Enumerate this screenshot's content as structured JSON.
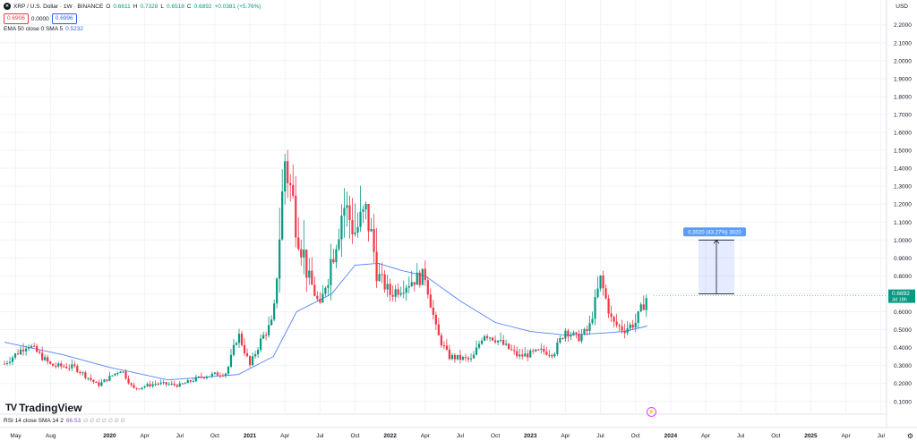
{
  "symbol": {
    "icon": "xrp-logo-icon",
    "title": "XRP / U.S. Dollar · 1W · BINANCE",
    "o_label": "O",
    "o_value": "0.6611",
    "h_label": "H",
    "h_value": "0.7328",
    "l_label": "L",
    "l_value": "0.6518",
    "c_label": "C",
    "c_value": "0.6892",
    "change": "+0.0381 (+5.76%)"
  },
  "trade": {
    "sell_price": "0.6906",
    "spread": "0.0000",
    "buy_price": "0.6996"
  },
  "ema": {
    "label": "EMA 50 close 0 SMA 5",
    "value": "0.5232"
  },
  "rsi": {
    "label": "RSI 14 close SMA 14 2",
    "value": "66.53",
    "placeholders": "∅ ∅ ∅ ∅ ∅ ∅ ∅"
  },
  "axis": {
    "currency": "USD"
  },
  "logo_text": "TradingView",
  "measure": {
    "label": "0.3020 (43.27%) 3020"
  },
  "last_price": {
    "value": "0.6892",
    "countdown": "3d 18h"
  },
  "icons": {
    "settings": "gear-icon",
    "lightning": "lightning-icon"
  },
  "colors": {
    "up": "#089981",
    "down": "#f23645",
    "ema": "#2962ff",
    "measure": "#5b9cf6"
  },
  "chart_data": {
    "type": "candlestick",
    "title": "XRP / U.S. Dollar · 1W · BINANCE",
    "ylim": [
      0.05,
      2.25
    ],
    "y_ticks": [
      "2.2000",
      "2.1000",
      "2.0000",
      "1.9000",
      "1.8000",
      "1.7000",
      "1.6000",
      "1.5000",
      "1.4000",
      "1.3000",
      "1.2000",
      "1.1000",
      "1.0000",
      "0.9000",
      "0.8000",
      "0.7000",
      "0.6000",
      "0.5000",
      "0.4000",
      "0.3000",
      "0.2000",
      "0.1000"
    ],
    "x_ticks": [
      "May",
      "Aug",
      "2020",
      "Apr",
      "Jul",
      "Oct",
      "2021",
      "Apr",
      "Jul",
      "Oct",
      "2022",
      "Apr",
      "Jul",
      "Oct",
      "2023",
      "Apr",
      "Jul",
      "Oct",
      "2024",
      "Apr",
      "Jul",
      "Oct",
      "2025",
      "Apr",
      "Jul"
    ],
    "grid": true,
    "series": [
      {
        "kind": "weekly-close-anchors",
        "x": [
          "2019-04",
          "2019-06",
          "2019-08",
          "2019-10",
          "2019-12",
          "2020-02",
          "2020-03",
          "2020-05",
          "2020-07",
          "2020-09",
          "2020-11",
          "2020-12",
          "2021-01",
          "2021-02",
          "2021-03",
          "2021-04",
          "2021-05",
          "2021-06",
          "2021-07",
          "2021-09",
          "2021-10",
          "2021-11",
          "2021-12",
          "2022-01",
          "2022-03",
          "2022-04",
          "2022-05",
          "2022-06",
          "2022-08",
          "2022-09",
          "2022-10",
          "2022-11",
          "2022-12",
          "2023-02",
          "2023-03",
          "2023-04",
          "2023-05",
          "2023-06",
          "2023-07",
          "2023-08",
          "2023-09",
          "2023-10",
          "2023-11"
        ],
        "close": [
          0.31,
          0.42,
          0.3,
          0.29,
          0.19,
          0.28,
          0.17,
          0.2,
          0.19,
          0.24,
          0.26,
          0.48,
          0.3,
          0.45,
          0.55,
          1.45,
          1.1,
          0.8,
          0.62,
          1.2,
          1.05,
          1.15,
          0.8,
          0.7,
          0.78,
          0.8,
          0.48,
          0.35,
          0.33,
          0.48,
          0.45,
          0.4,
          0.35,
          0.38,
          0.37,
          0.5,
          0.45,
          0.5,
          0.78,
          0.54,
          0.5,
          0.54,
          0.69
        ]
      },
      {
        "name": "EMA 50",
        "x": [
          "2019-04",
          "2019-09",
          "2020-01",
          "2020-06",
          "2020-12",
          "2021-03",
          "2021-05",
          "2021-08",
          "2021-10",
          "2021-12",
          "2022-02",
          "2022-04",
          "2022-07",
          "2022-10",
          "2023-01",
          "2023-04",
          "2023-07",
          "2023-09",
          "2023-11"
        ],
        "values": [
          0.43,
          0.36,
          0.29,
          0.22,
          0.25,
          0.35,
          0.6,
          0.7,
          0.86,
          0.87,
          0.83,
          0.8,
          0.66,
          0.54,
          0.49,
          0.47,
          0.48,
          0.49,
          0.52
        ]
      }
    ],
    "measure_range": {
      "from": 0.7,
      "to": 1.0,
      "label": "0.3020 (43.27%) 3020"
    }
  }
}
